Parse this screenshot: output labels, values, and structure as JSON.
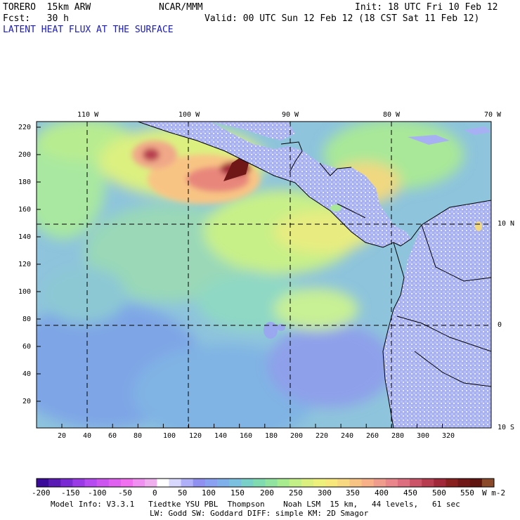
{
  "header": {
    "model": "TORERO  15km ARW",
    "org": "NCAR/MMM",
    "init": "Init: 18 UTC Fri 10 Feb 12",
    "fcst": "Fcst:   30 h",
    "valid": "Valid: 00 UTC Sun 12 Feb 12 (18 CST Sat 11 Feb 12)",
    "field_title": "LATENT HEAT FLUX AT THE SURFACE"
  },
  "map": {
    "lon_labels": [
      "110 W",
      "100 W",
      "90 W",
      "80 W",
      "70 W"
    ],
    "lat_labels": [
      "10 N",
      "0",
      "10 S"
    ],
    "y_ticks": [
      "220",
      "200",
      "180",
      "160",
      "140",
      "120",
      "100",
      "80",
      "60",
      "40",
      "20"
    ],
    "x_ticks": [
      "20",
      "40",
      "60",
      "80",
      "100",
      "120",
      "140",
      "160",
      "180",
      "200",
      "220",
      "240",
      "260",
      "280",
      "300",
      "320"
    ]
  },
  "colorbar": {
    "labels": [
      "-200",
      "-150",
      "-100",
      "-50",
      "0",
      "50",
      "100",
      "150",
      "200",
      "250",
      "300",
      "350",
      "400",
      "450",
      "500",
      "550"
    ],
    "units": "W m-2",
    "colors": [
      "#3a0a9a",
      "#5a1ab4",
      "#7a2ad2",
      "#9a3ae6",
      "#b44af0",
      "#cc55f0",
      "#e060f0",
      "#f070f0",
      "#f090f0",
      "#f0b0f0",
      "#ffffff",
      "#d8d8ff",
      "#b0b0f8",
      "#9090f0",
      "#8aa0f0",
      "#80b0ea",
      "#7cc0e0",
      "#78d0c8",
      "#80dcb0",
      "#90e4a0",
      "#a8ec90",
      "#c4f088",
      "#dcf080",
      "#eef07c",
      "#f8e87c",
      "#f8d880",
      "#f8c484",
      "#f8b088",
      "#f09c8c",
      "#e8868c",
      "#dc6e80",
      "#cc5468",
      "#b83c50",
      "#a02838",
      "#882020",
      "#701818",
      "#601410",
      "#8a4a2a"
    ]
  },
  "footer": {
    "line1": "Model Info: V3.3.1   Tiedtke YSU PBL  Thompson    Noah LSM  15 km,   44 levels,   61 sec",
    "line2": "LW: Godd SW: Goddard DIFF: simple KM: 2D Smagor"
  }
}
